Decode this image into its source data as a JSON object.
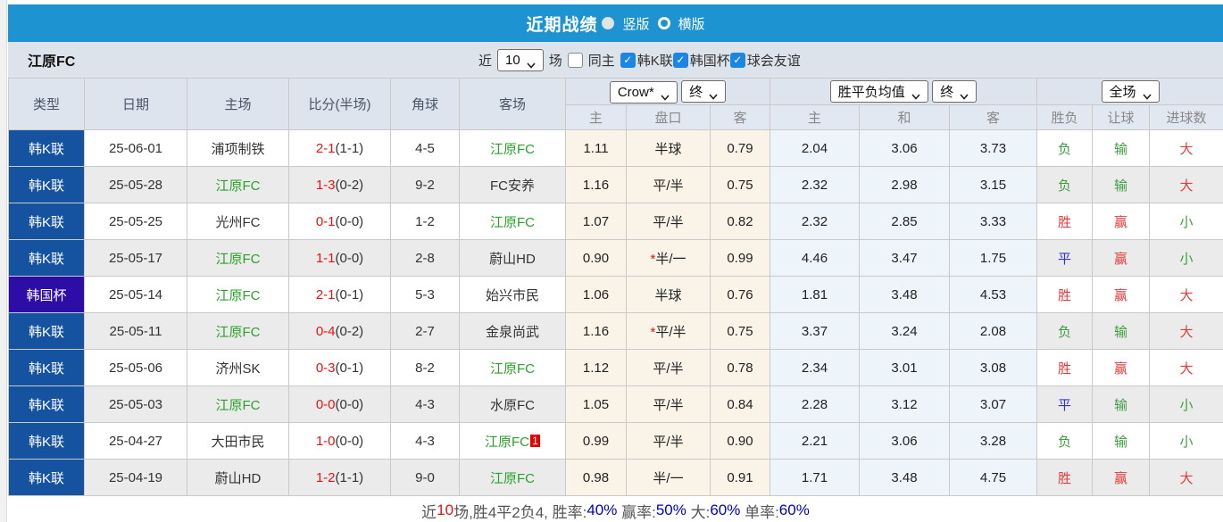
{
  "colors": {
    "accent_blue": "#1e93d1",
    "league_blue": "#15529f",
    "cup_purple": "#2c0da6",
    "self_team_green": "#2ba12b",
    "score_red": "#ee1111",
    "win_red": "#e23b3b",
    "lose_green": "#3f9c3f",
    "draw_blue": "#3333cc",
    "odds_cream_bg": "#faf4e8",
    "europe_blue_bg": "#edf4fa",
    "checkbox_blue": "#1b87e5",
    "percent_blue": "#0000cc"
  },
  "title_bar": {
    "title": "近期战绩",
    "radio_vertical": {
      "label": "竖版",
      "selected": true
    },
    "radio_horizontal": {
      "label": "横版",
      "selected": false
    }
  },
  "filter_bar": {
    "team_name": "江原FC",
    "near_label": "近",
    "match_count": "10",
    "games_label": "场",
    "same_home": {
      "label": "同主",
      "checked": false
    },
    "league_filters": [
      {
        "label": "韩K联",
        "checked": true
      },
      {
        "label": "韩国杯",
        "checked": true
      },
      {
        "label": "球会友谊",
        "checked": true
      }
    ]
  },
  "table": {
    "header": {
      "type": "类型",
      "date": "日期",
      "home": "主场",
      "score": "比分(半场)",
      "corner": "角球",
      "away": "客场",
      "odds_company_select": "Crow*",
      "odds_stage_select": "终",
      "europe_company_select": "胜平负均值",
      "europe_stage_select": "终",
      "period_select": "全场",
      "sub": {
        "h": "主",
        "handicap": "盘口",
        "a": "客",
        "ew": "主",
        "ed": "和",
        "el": "客",
        "result": "胜负",
        "asian": "让球",
        "goals": "进球数"
      }
    },
    "rows": [
      {
        "type": "韩K联",
        "type_style": "league",
        "date": "25-06-01",
        "home": "浦项制铁",
        "home_self": false,
        "score": "2-1",
        "half": "(1-1)",
        "corner": "4-5",
        "away": "江原FC",
        "away_self": true,
        "away_badge": "",
        "odds_h": "1.11",
        "star": false,
        "handicap": "半球",
        "odds_a": "0.79",
        "eu_w": "2.04",
        "eu_d": "3.06",
        "eu_l": "3.73",
        "result": "负",
        "result_c": "green",
        "asian": "输",
        "asian_c": "green",
        "goals": "大",
        "goals_c": "red"
      },
      {
        "type": "韩K联",
        "type_style": "league",
        "date": "25-05-28",
        "home": "江原FC",
        "home_self": true,
        "score": "1-3",
        "half": "(0-2)",
        "corner": "9-2",
        "away": "FC安养",
        "away_self": false,
        "away_badge": "",
        "odds_h": "1.16",
        "star": false,
        "handicap": "平/半",
        "odds_a": "0.75",
        "eu_w": "2.32",
        "eu_d": "2.98",
        "eu_l": "3.15",
        "result": "负",
        "result_c": "green",
        "asian": "输",
        "asian_c": "green",
        "goals": "大",
        "goals_c": "red"
      },
      {
        "type": "韩K联",
        "type_style": "league",
        "date": "25-05-25",
        "home": "光州FC",
        "home_self": false,
        "score": "0-1",
        "half": "(0-0)",
        "corner": "1-2",
        "away": "江原FC",
        "away_self": true,
        "away_badge": "",
        "odds_h": "1.07",
        "star": false,
        "handicap": "平/半",
        "odds_a": "0.82",
        "eu_w": "2.32",
        "eu_d": "2.85",
        "eu_l": "3.33",
        "result": "胜",
        "result_c": "red",
        "asian": "赢",
        "asian_c": "red",
        "goals": "小",
        "goals_c": "green"
      },
      {
        "type": "韩K联",
        "type_style": "league",
        "date": "25-05-17",
        "home": "江原FC",
        "home_self": true,
        "score": "1-1",
        "half": "(0-0)",
        "corner": "2-8",
        "away": "蔚山HD",
        "away_self": false,
        "away_badge": "",
        "odds_h": "0.90",
        "star": true,
        "handicap": "半/一",
        "odds_a": "0.99",
        "eu_w": "4.46",
        "eu_d": "3.47",
        "eu_l": "1.75",
        "result": "平",
        "result_c": "blue",
        "asian": "赢",
        "asian_c": "red",
        "goals": "小",
        "goals_c": "green"
      },
      {
        "type": "韩国杯",
        "type_style": "cup",
        "date": "25-05-14",
        "home": "江原FC",
        "home_self": true,
        "score": "2-1",
        "half": "(0-1)",
        "corner": "5-3",
        "away": "始兴市民",
        "away_self": false,
        "away_badge": "",
        "odds_h": "1.06",
        "star": false,
        "handicap": "半球",
        "odds_a": "0.76",
        "eu_w": "1.81",
        "eu_d": "3.48",
        "eu_l": "4.53",
        "result": "胜",
        "result_c": "red",
        "asian": "赢",
        "asian_c": "red",
        "goals": "大",
        "goals_c": "red"
      },
      {
        "type": "韩K联",
        "type_style": "league",
        "date": "25-05-11",
        "home": "江原FC",
        "home_self": true,
        "score": "0-4",
        "half": "(0-2)",
        "corner": "2-7",
        "away": "金泉尚武",
        "away_self": false,
        "away_badge": "",
        "odds_h": "1.16",
        "star": true,
        "handicap": "平/半",
        "odds_a": "0.75",
        "eu_w": "3.37",
        "eu_d": "3.24",
        "eu_l": "2.08",
        "result": "负",
        "result_c": "green",
        "asian": "输",
        "asian_c": "green",
        "goals": "大",
        "goals_c": "red"
      },
      {
        "type": "韩K联",
        "type_style": "league",
        "date": "25-05-06",
        "home": "济州SK",
        "home_self": false,
        "score": "0-3",
        "half": "(0-1)",
        "corner": "8-2",
        "away": "江原FC",
        "away_self": true,
        "away_badge": "",
        "odds_h": "1.12",
        "star": false,
        "handicap": "平/半",
        "odds_a": "0.78",
        "eu_w": "2.34",
        "eu_d": "3.01",
        "eu_l": "3.08",
        "result": "胜",
        "result_c": "red",
        "asian": "赢",
        "asian_c": "red",
        "goals": "大",
        "goals_c": "red"
      },
      {
        "type": "韩K联",
        "type_style": "league",
        "date": "25-05-03",
        "home": "江原FC",
        "home_self": true,
        "score": "0-0",
        "half": "(0-0)",
        "corner": "4-3",
        "away": "水原FC",
        "away_self": false,
        "away_badge": "",
        "odds_h": "1.05",
        "star": false,
        "handicap": "平/半",
        "odds_a": "0.84",
        "eu_w": "2.28",
        "eu_d": "3.12",
        "eu_l": "3.07",
        "result": "平",
        "result_c": "blue",
        "asian": "输",
        "asian_c": "green",
        "goals": "小",
        "goals_c": "green"
      },
      {
        "type": "韩K联",
        "type_style": "league",
        "date": "25-04-27",
        "home": "大田市民",
        "home_self": false,
        "score": "1-0",
        "half": "(0-0)",
        "corner": "4-3",
        "away": "江原FC",
        "away_self": true,
        "away_badge": "1",
        "odds_h": "0.99",
        "star": false,
        "handicap": "平/半",
        "odds_a": "0.90",
        "eu_w": "2.21",
        "eu_d": "3.06",
        "eu_l": "3.28",
        "result": "负",
        "result_c": "green",
        "asian": "输",
        "asian_c": "green",
        "goals": "小",
        "goals_c": "green"
      },
      {
        "type": "韩K联",
        "type_style": "league",
        "date": "25-04-19",
        "home": "蔚山HD",
        "home_self": false,
        "score": "1-2",
        "half": "(1-1)",
        "corner": "9-0",
        "away": "江原FC",
        "away_self": true,
        "away_badge": "",
        "odds_h": "0.98",
        "star": false,
        "handicap": "半/一",
        "odds_a": "0.91",
        "eu_w": "1.71",
        "eu_d": "3.48",
        "eu_l": "4.75",
        "result": "胜",
        "result_c": "red",
        "asian": "赢",
        "asian_c": "red",
        "goals": "大",
        "goals_c": "red"
      }
    ]
  },
  "summary": {
    "segments": [
      {
        "text": "近",
        "c": "dark"
      },
      {
        "text": "10",
        "c": "red"
      },
      {
        "text": "场,胜4平2负4, 胜率:",
        "c": "dark"
      },
      {
        "text": "40%",
        "c": "blue"
      },
      {
        "text": " 赢率:",
        "c": "dark"
      },
      {
        "text": "50%",
        "c": "blue"
      },
      {
        "text": " 大:",
        "c": "dark"
      },
      {
        "text": "60%",
        "c": "blue"
      },
      {
        "text": " 单率:",
        "c": "dark"
      },
      {
        "text": "60%",
        "c": "blue"
      }
    ]
  }
}
